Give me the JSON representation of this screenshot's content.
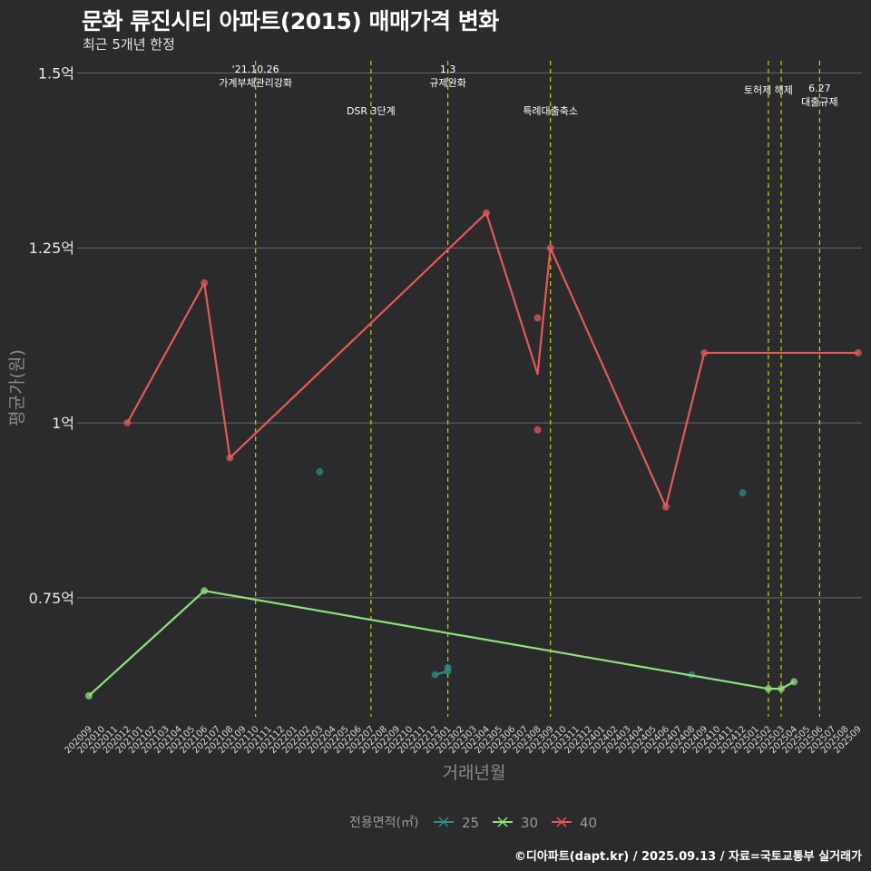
{
  "header": {
    "title": "문화 류진시티 아파트(2015) 매매가격 변화",
    "subtitle": "최근 5개년 한정"
  },
  "footer": {
    "caption": "©디아파트(dapt.kr) / 2025.09.13 / 자료=국토교통부 실거래가"
  },
  "colors": {
    "background": "#2b2a2c",
    "grid": "#6a6a6a",
    "vline": "#c8d400",
    "s25": "#2a8f86",
    "s30": "#8fe07a",
    "s40": "#e25a5a"
  },
  "chart_data": {
    "type": "line",
    "xlabel": "거래년월",
    "ylabel": "평균가(원)",
    "x_categories": [
      "202009",
      "202010",
      "202011",
      "202012",
      "202101",
      "202102",
      "202103",
      "202104",
      "202105",
      "202106",
      "202107",
      "202108",
      "202109",
      "202110",
      "202111",
      "202112",
      "202201",
      "202202",
      "202203",
      "202204",
      "202205",
      "202206",
      "202207",
      "202208",
      "202209",
      "202210",
      "202211",
      "202212",
      "202301",
      "202302",
      "202303",
      "202304",
      "202305",
      "202306",
      "202307",
      "202308",
      "202309",
      "202310",
      "202311",
      "202312",
      "202401",
      "202402",
      "202403",
      "202404",
      "202405",
      "202406",
      "202407",
      "202408",
      "202409",
      "202410",
      "202411",
      "202412",
      "202501",
      "202502",
      "202503",
      "202504",
      "202505",
      "202506",
      "202507",
      "202508",
      "202509"
    ],
    "y_ticks": [
      {
        "value": 0.75,
        "label": "0.75억"
      },
      {
        "value": 1.0,
        "label": "1억"
      },
      {
        "value": 1.25,
        "label": "1.25억"
      },
      {
        "value": 1.5,
        "label": "1.5억"
      }
    ],
    "ylim": [
      0.58,
      1.52
    ],
    "legend": {
      "title": "전용면적(㎡)",
      "position": "bottom"
    },
    "series": [
      {
        "name": "25",
        "color": "#2a8f86",
        "line": [
          [
            "202212",
            0.64
          ],
          [
            "202301",
            0.645
          ],
          [
            "202301",
            0.65
          ]
        ],
        "points": [
          [
            "202203",
            0.93
          ],
          [
            "202212",
            0.64
          ],
          [
            "202301",
            0.645
          ],
          [
            "202301",
            0.65
          ],
          [
            "202408",
            0.64
          ],
          [
            "202412",
            0.9
          ]
        ]
      },
      {
        "name": "30",
        "color": "#8fe07a",
        "line": [
          [
            "202009",
            0.61
          ],
          [
            "202106",
            0.76
          ],
          [
            "202502",
            0.62
          ],
          [
            "202503",
            0.62
          ],
          [
            "202504",
            0.63
          ]
        ],
        "points": [
          [
            "202009",
            0.61
          ],
          [
            "202106",
            0.76
          ],
          [
            "202502",
            0.62
          ],
          [
            "202503",
            0.62
          ],
          [
            "202504",
            0.63
          ]
        ]
      },
      {
        "name": "40",
        "color": "#e25a5a",
        "line": [
          [
            "202012",
            1.0
          ],
          [
            "202106",
            1.2
          ],
          [
            "202108",
            0.95
          ],
          [
            "202304",
            1.3
          ],
          [
            "202308",
            1.07
          ],
          [
            "202309",
            1.25
          ],
          [
            "202406",
            0.88
          ],
          [
            "202409",
            1.1
          ],
          [
            "202509",
            1.1
          ]
        ],
        "points": [
          [
            "202012",
            1.0
          ],
          [
            "202106",
            1.2
          ],
          [
            "202108",
            0.95
          ],
          [
            "202304",
            1.3
          ],
          [
            "202308",
            1.15
          ],
          [
            "202308",
            0.99
          ],
          [
            "202309",
            1.25
          ],
          [
            "202406",
            0.88
          ],
          [
            "202409",
            1.1
          ],
          [
            "202509",
            1.1
          ]
        ]
      }
    ],
    "annotations": [
      {
        "x": "202110",
        "lines": [
          "'21.10.26",
          "가계부채관리강화"
        ],
        "level": "high"
      },
      {
        "x": "202207",
        "lines": [
          "DSR 3단계"
        ],
        "level": "low"
      },
      {
        "x": "202301",
        "lines": [
          "1.3",
          "규제완화"
        ],
        "level": "high"
      },
      {
        "x": "202309",
        "lines": [
          "특례대출축소"
        ],
        "level": "low"
      },
      {
        "x": "202502",
        "lines": [
          "토허제 해제"
        ],
        "level": "mid"
      },
      {
        "x": "202503",
        "lines": [],
        "level": "none"
      },
      {
        "x": "202506",
        "lines": [
          "6.27",
          "대출규제"
        ],
        "level": "mid2"
      }
    ]
  }
}
